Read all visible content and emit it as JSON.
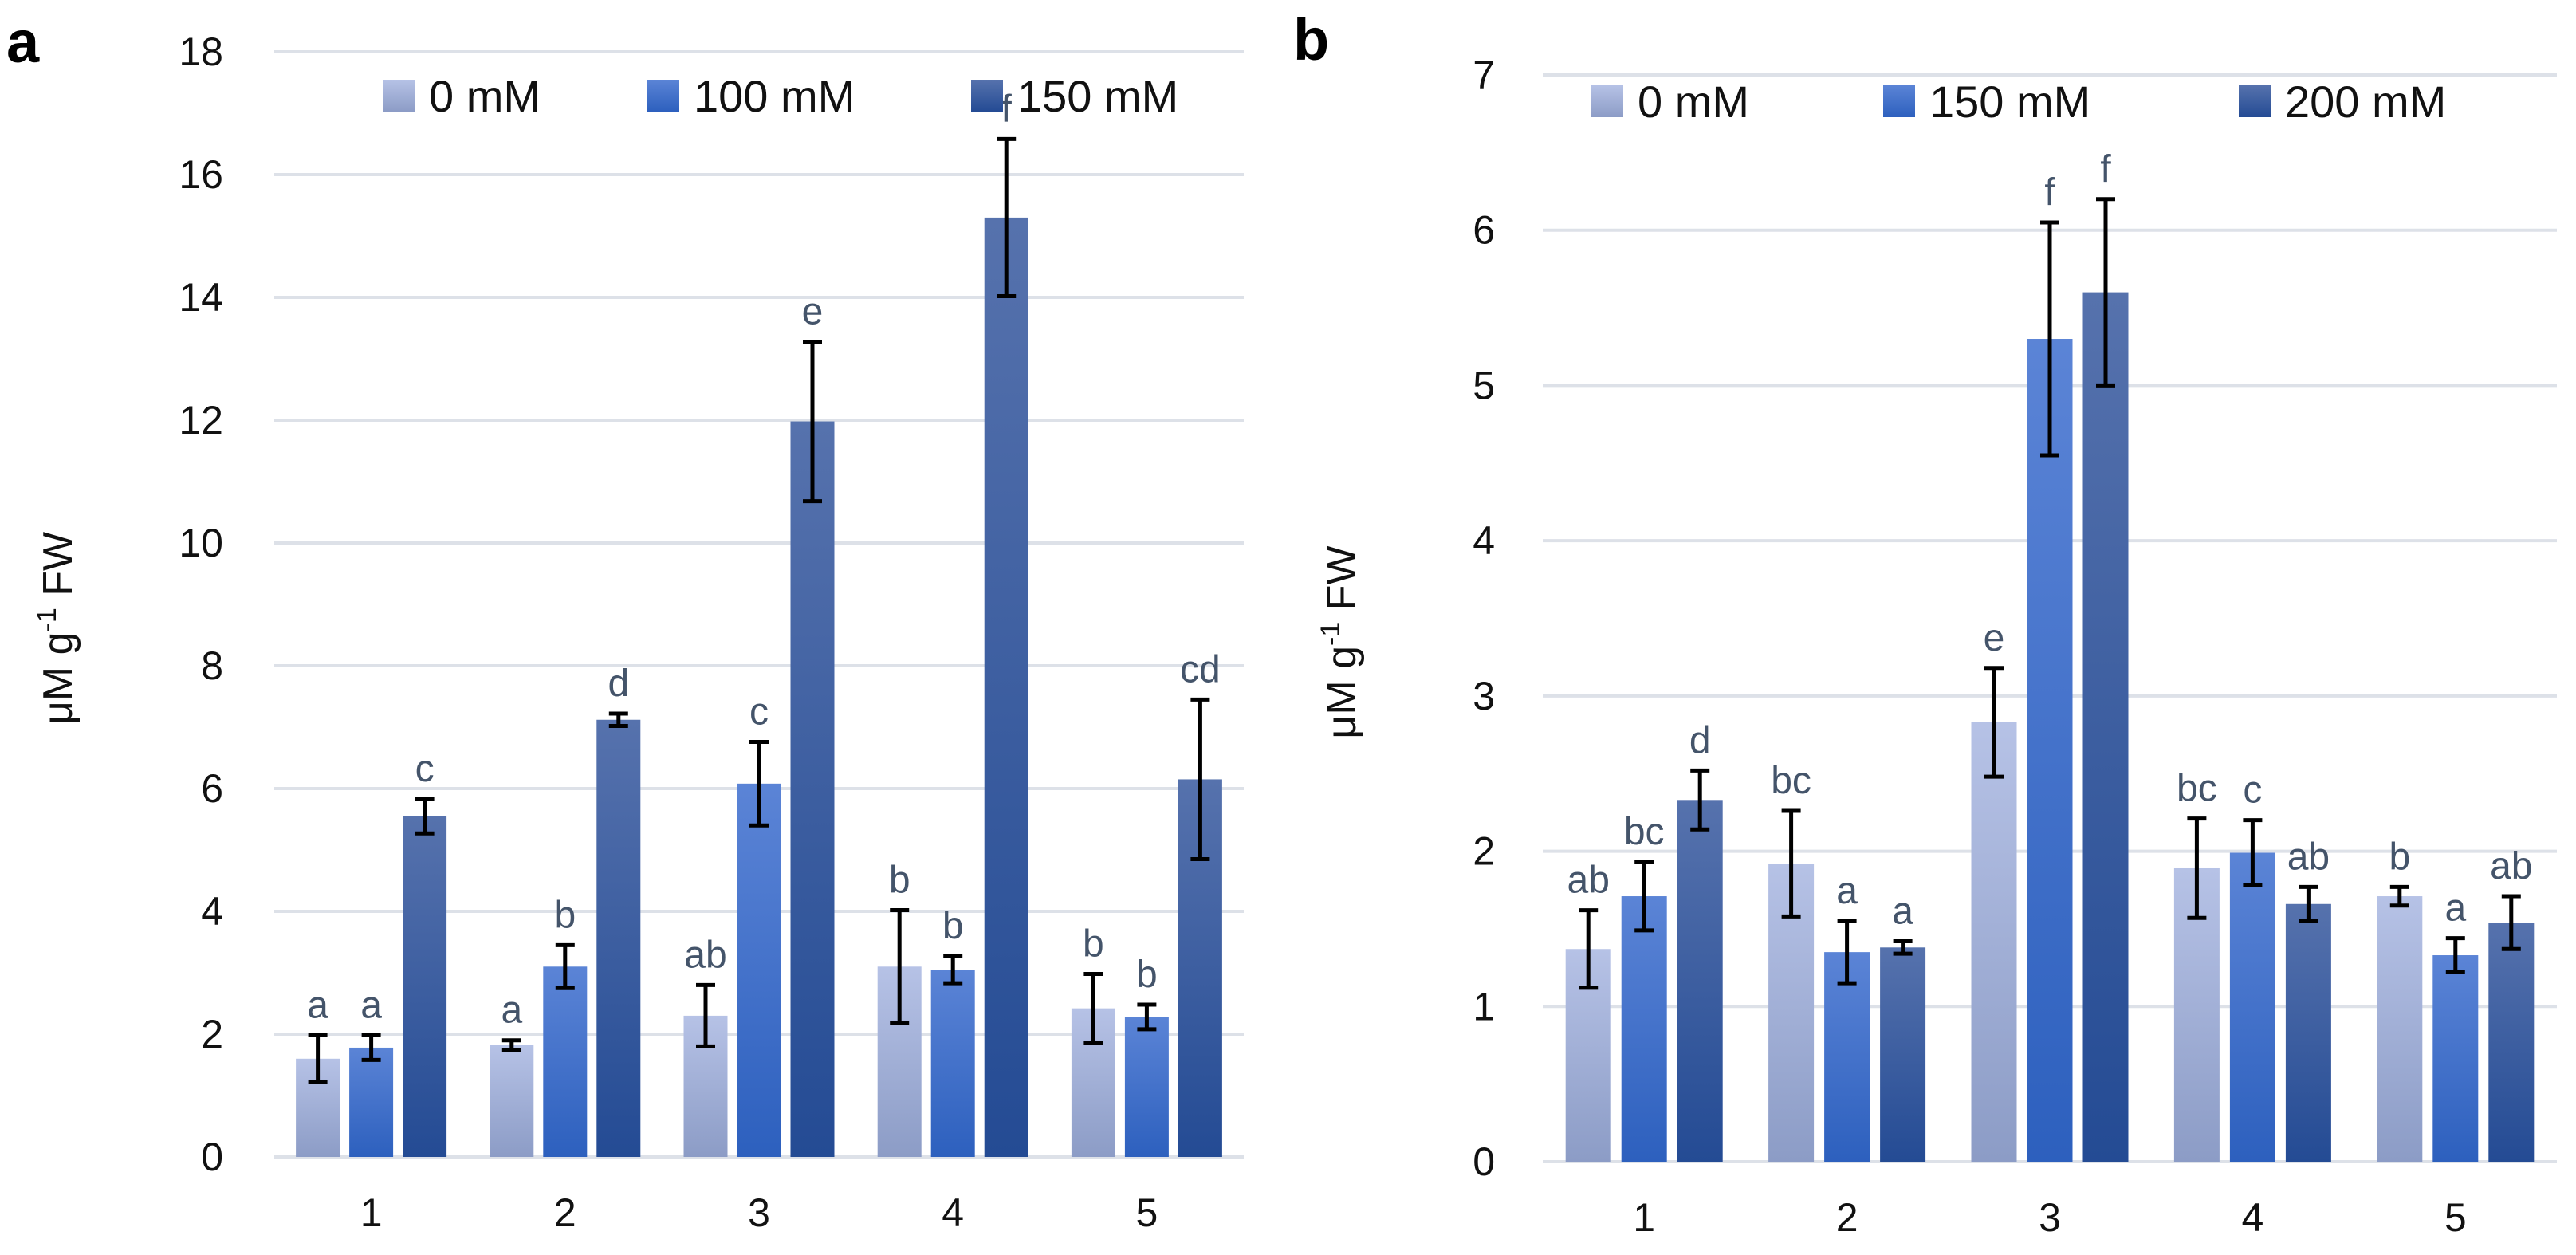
{
  "chart_data": [
    {
      "type": "bar",
      "panel_label": "a",
      "title": "",
      "xlabel": "",
      "ylabel": "μM g-1 FW",
      "ylabel_parts": {
        "main": "μM g",
        "sup": "-1",
        "tail": " FW"
      },
      "ylim": [
        0,
        18
      ],
      "yticks": [
        0,
        2,
        4,
        6,
        8,
        10,
        12,
        14,
        16,
        18
      ],
      "grid": true,
      "legend_position": "top",
      "categories": [
        "1",
        "2",
        "3",
        "4",
        "5"
      ],
      "series": [
        {
          "name": "0 mM",
          "values": [
            1.6,
            1.82,
            2.3,
            3.1,
            2.42
          ],
          "errors": [
            0.38,
            0.08,
            0.5,
            0.92,
            0.56
          ],
          "letters": [
            "a",
            "a",
            "ab",
            "b",
            "b"
          ]
        },
        {
          "name": "100 mM",
          "values": [
            1.78,
            3.1,
            6.08,
            3.05,
            2.28
          ],
          "errors": [
            0.2,
            0.35,
            0.68,
            0.22,
            0.2
          ],
          "letters": [
            "a",
            "b",
            "c",
            "b",
            "b"
          ]
        },
        {
          "name": "150 mM",
          "values": [
            5.55,
            7.12,
            11.98,
            15.3,
            6.15
          ],
          "errors": [
            0.28,
            0.1,
            1.3,
            1.28,
            1.3
          ],
          "letters": [
            "c",
            "d",
            "e",
            "f",
            "cd"
          ]
        }
      ]
    },
    {
      "type": "bar",
      "panel_label": "b",
      "title": "",
      "xlabel": "",
      "ylabel": "μM g-1 FW",
      "ylabel_parts": {
        "main": "μM g",
        "sup": "-1",
        "tail": " FW"
      },
      "ylim": [
        0,
        7
      ],
      "yticks": [
        0,
        1,
        2,
        3,
        4,
        5,
        6,
        7
      ],
      "grid": true,
      "legend_position": "top",
      "categories": [
        "1",
        "2",
        "3",
        "4",
        "5"
      ],
      "series": [
        {
          "name": "0 mM",
          "values": [
            1.37,
            1.92,
            2.83,
            1.89,
            1.71
          ],
          "errors": [
            0.25,
            0.34,
            0.35,
            0.32,
            0.06
          ],
          "letters": [
            "ab",
            "bc",
            "e",
            "bc",
            "b"
          ]
        },
        {
          "name": "150 mM",
          "values": [
            1.71,
            1.35,
            5.3,
            1.99,
            1.33
          ],
          "errors": [
            0.22,
            0.2,
            0.75,
            0.21,
            0.11
          ],
          "letters": [
            "bc",
            "a",
            "f",
            "c",
            "a"
          ]
        },
        {
          "name": "200 mM",
          "values": [
            2.33,
            1.38,
            5.6,
            1.66,
            1.54
          ],
          "errors": [
            0.19,
            0.04,
            0.6,
            0.11,
            0.17
          ],
          "letters": [
            "d",
            "a",
            "f",
            "ab",
            "ab"
          ]
        }
      ]
    }
  ],
  "colors": {
    "series": [
      [
        "#b6c2e6",
        "#8c9cc6"
      ],
      [
        "#5b84d6",
        "#2d60be"
      ],
      [
        "#5672ad",
        "#244b94"
      ]
    ],
    "grid": "#dde1e8",
    "letters": "#44546a"
  }
}
